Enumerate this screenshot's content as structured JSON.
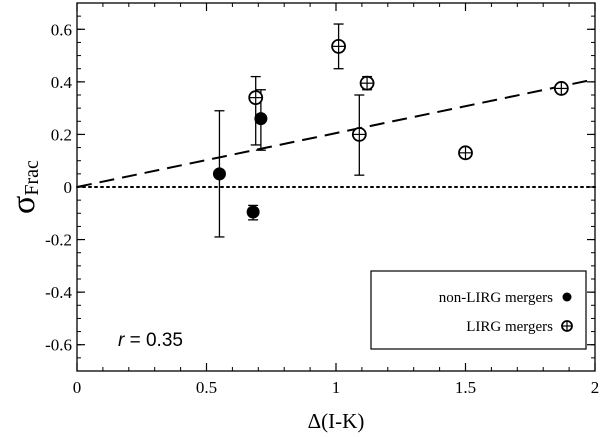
{
  "chart_data": {
    "type": "scatter",
    "xlabel": "Δ(I-K)",
    "ylabel_main": "σ",
    "ylabel_sub": "Frac",
    "xlim": [
      0,
      2
    ],
    "ylim": [
      -0.7,
      0.7
    ],
    "x_ticks": [
      0,
      0.5,
      1,
      1.5,
      2
    ],
    "x_tick_labels": [
      "0",
      "0.5",
      "1",
      "1.5",
      "2"
    ],
    "y_ticks": [
      -0.6,
      -0.4,
      -0.2,
      0,
      0.2,
      0.4,
      0.6
    ],
    "y_tick_labels": [
      "-0.6",
      "-0.4",
      "-0.2",
      "0",
      "0.2",
      "0.4",
      "0.6"
    ],
    "grid": false,
    "legend_position": "bottom-right",
    "annotation": {
      "prefix": "r",
      "suffix": " = 0.35"
    },
    "series": [
      {
        "name": "non-LIRG mergers",
        "marker": "filled-circle",
        "points": [
          {
            "x": 0.55,
            "y": 0.05,
            "y_low": -0.19,
            "y_high": 0.29
          },
          {
            "x": 0.68,
            "y": -0.095,
            "y_low": -0.125,
            "y_high": -0.07
          },
          {
            "x": 0.71,
            "y": 0.26,
            "y_low": 0.14,
            "y_high": 0.37
          }
        ]
      },
      {
        "name": "LIRG mergers",
        "marker": "open-circle-cross",
        "points": [
          {
            "x": 0.69,
            "y": 0.34,
            "y_low": 0.16,
            "y_high": 0.42
          },
          {
            "x": 1.01,
            "y": 0.535,
            "y_low": 0.45,
            "y_high": 0.62
          },
          {
            "x": 1.09,
            "y": 0.2,
            "y_low": 0.045,
            "y_high": 0.35
          },
          {
            "x": 1.12,
            "y": 0.395,
            "y_low": 0.37,
            "y_high": 0.42
          },
          {
            "x": 1.5,
            "y": 0.13,
            "y_low": 0.115,
            "y_high": 0.145
          },
          {
            "x": 1.87,
            "y": 0.375,
            "y_low": 0.36,
            "y_high": 0.39
          }
        ]
      }
    ],
    "fit_line": {
      "style": "dashed",
      "x": [
        0,
        2
      ],
      "y": [
        0.0,
        0.41
      ]
    },
    "reference_line": {
      "style": "dotted",
      "y": 0
    }
  }
}
